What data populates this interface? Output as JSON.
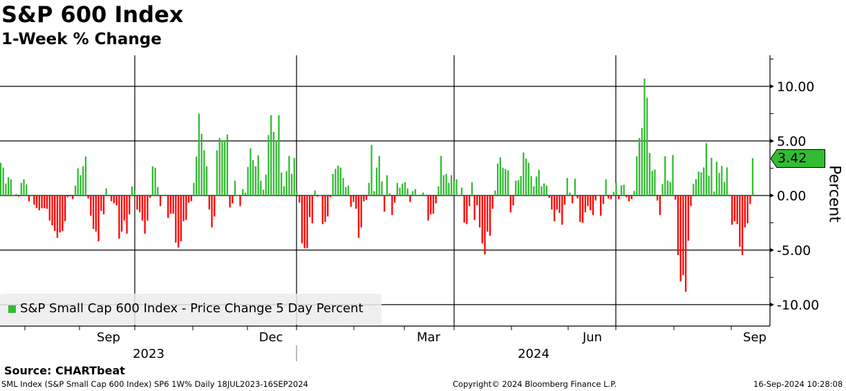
{
  "header": {
    "title": "S&P 600 Index",
    "subtitle": "1-Week % Change"
  },
  "legend": {
    "label": "S&P Small Cap 600 Index - Price Change 5 Day Percent"
  },
  "source": "Source: CHARTbeat",
  "footer": {
    "left": "SML Index (S&P Small Cap 600 Index) SP6 1W%  Daily 18JUL2023-16SEP2024",
    "center": "Copyright© 2024 Bloomberg Finance L.P.",
    "right": "16-Sep-2024 10:28:08"
  },
  "colors": {
    "positive": "#33bb33",
    "negative": "#ff0000"
  },
  "chart_data": {
    "type": "bar",
    "title": "S&P 600 Index",
    "subtitle": "1-Week % Change",
    "ylabel": "Percent",
    "ylim": [
      -12,
      12.5
    ],
    "yticks": [
      "10.00",
      "5.00",
      "0.00",
      "-5.00",
      "-10.00"
    ],
    "ytick_values": [
      10,
      5,
      0,
      -5,
      -10
    ],
    "x_range": [
      "2023-07-18",
      "2024-09-16"
    ],
    "x_month_labels": [
      "Sep",
      "Dec",
      "Mar",
      "Jun",
      "Sep"
    ],
    "x_year_labels": [
      "2023",
      "2024"
    ],
    "grid": true,
    "legend_position": "bottom-left",
    "last_value": "3.42",
    "series": [
      {
        "name": "S&P Small Cap 600 Index - Price Change 5 Day Percent",
        "values": [
          3.0,
          2.55,
          1.1,
          1.67,
          1.48,
          -0.02,
          0.15,
          -0.1,
          1.16,
          1.48,
          1.03,
          -0.53,
          0.08,
          -0.84,
          -1.16,
          -1.35,
          -1.16,
          -1.16,
          -1.22,
          -2.3,
          -2.74,
          -3.25,
          -3.88,
          -3.38,
          -3.25,
          -2.36,
          -0.15,
          -0.08,
          -0.34,
          0.9,
          2.49,
          1.86,
          2.68,
          3.57,
          -0.27,
          -1.86,
          -3.06,
          -3.31,
          -4.2,
          -1.41,
          -1.73,
          0.65,
          0.08,
          -0.53,
          -0.72,
          -0.91,
          -3.95,
          -3.31,
          -2.3,
          -3.5,
          -1.73,
          0.84,
          0.46,
          -1.29,
          -1.54,
          -2.3,
          -3.5,
          -2.3,
          -0.21,
          2.68,
          2.55,
          0.78,
          -0.97,
          -0.04,
          -0.04,
          -2.05,
          -1.67,
          -1.67,
          -4.32,
          -4.77,
          -4.2,
          -2.36,
          -2.24,
          -0.65,
          -0.53,
          1.16,
          3.57,
          7.49,
          5.65,
          4.14,
          2.68,
          -1.29,
          -2.93,
          -1.92,
          4.14,
          5.27,
          5.02,
          5.08,
          5.59,
          -1.1,
          -0.72,
          1.35,
          0.02,
          -0.97,
          0.59,
          0.27,
          2.62,
          4.32,
          3.25,
          2.68,
          3.69,
          1.35,
          0.53,
          1.92,
          5.53,
          7.36,
          5.84,
          5.02,
          7.36,
          2.11,
          0.84,
          2.24,
          3.63,
          1.98,
          3.44,
          0.4,
          -0.65,
          -4.39,
          -4.83,
          -4.83,
          -1.98,
          -2.55,
          0.46,
          -0.1,
          0.02,
          -2.62,
          -2.43,
          -1.92,
          -0.15,
          1.98,
          2.43,
          2.74,
          2.55,
          1.6,
          0.78,
          0.91,
          -1.03,
          -0.59,
          -1.22,
          -3.88,
          -2.93,
          -0.53,
          -0.4,
          1.16,
          4.64,
          0.4,
          2.55,
          3.63,
          1.29,
          -1.48,
          1.86,
          0.21,
          -1.79,
          -0.65,
          1.16,
          0.72,
          1.1,
          1.22,
          0.65,
          -0.59,
          0.4,
          0.59,
          -0.04,
          0.08,
          0.27,
          0.08,
          -2.3,
          -1.73,
          -1.67,
          -0.72,
          0.84,
          3.63,
          1.86,
          1.98,
          1.16,
          1.86,
          1.29,
          1.48,
          -0.02,
          0.72,
          -2.49,
          -2.62,
          -0.97,
          1.22,
          -2.24,
          -0.91,
          -2.93,
          -4.39,
          -5.4,
          -3.31,
          -3.69,
          -1.22,
          0.46,
          2.93,
          3.5,
          2.55,
          2.43,
          2.3,
          -1.54,
          -0.91,
          1.35,
          1.41,
          1.79,
          3.95,
          3.38,
          3.0,
          1.79,
          0.84,
          1.73,
          2.36,
          0.84,
          1.1,
          0.91,
          -0.21,
          -1.29,
          -2.36,
          -1.29,
          -1.6,
          -2.68,
          -0.84,
          1.6,
          0.27,
          -0.72,
          1.54,
          -0.27,
          -2.43,
          -2.49,
          -1.54,
          -0.97,
          -1.35,
          -1.79,
          -0.46,
          0.02,
          -1.86,
          -0.78,
          1.48,
          -0.27,
          -0.34,
          0.34,
          1.16,
          -0.34,
          0.93,
          0.99,
          -0.17,
          -0.53,
          -0.34,
          0.42,
          3.59,
          5.27,
          6.18,
          10.72,
          8.95,
          3.9,
          2.26,
          2.38,
          -0.46,
          -1.79,
          1.05,
          3.59,
          1.37,
          1.24,
          3.71,
          -0.4,
          -5.46,
          -7.87,
          -7.3,
          -8.82,
          -4.14,
          -0.97,
          1.05,
          1.5,
          2.19,
          2.13,
          2.57,
          4.79,
          1.81,
          3.46,
          0.36,
          3.08,
          2.07,
          2.7,
          1.24,
          2.57,
          0.1,
          -2.68,
          -2.36,
          -2.62,
          -4.7,
          -5.46,
          -2.93,
          -2.55,
          -0.78,
          3.42
        ]
      }
    ]
  }
}
